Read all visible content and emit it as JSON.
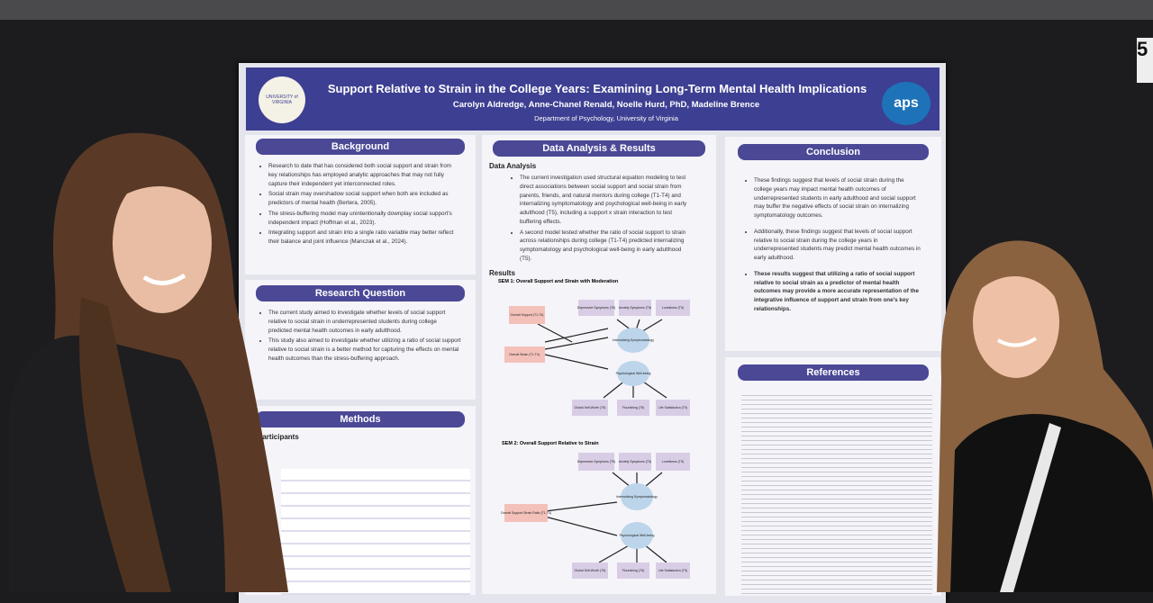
{
  "poster": {
    "university": "UNIVERSITY of VIRGINIA",
    "title": "Support Relative to Strain in the College Years: Examining Long-Term Mental Health Implications",
    "authors": "Carolyn Aldredge, Anne-Chanel Renald, Noelle Hurd, PhD, Madeline Brence",
    "department": "Department of Psychology, University of Virginia",
    "logo": "aps",
    "booth_number": "5",
    "background": {
      "heading": "Background",
      "bullets": [
        "Research to date that has considered both social support and strain from key relationships has employed analytic approaches that may not fully capture their independent yet interconnected roles.",
        "Social strain may overshadow social support when both are included as predictors of mental health (Bertera, 2005).",
        "The stress-buffering model may unintentionally downplay social support's independent impact (Hoffman et al., 2023).",
        "Integrating support and strain into a single ratio variable may better reflect their balance and joint influence (Manczak et al., 2024)."
      ]
    },
    "research_question": {
      "heading": "Research Question",
      "bullets": [
        "The current study aimed to investigate whether levels of social support relative to social strain in underrepresented students during college predicted mental health outcomes in early adulthood.",
        "This study also aimed to investigate whether utilizing a ratio of social support relative to social strain is a better method for capturing the effects on mental health outcomes than the stress-buffering approach."
      ]
    },
    "methods": {
      "heading": "Methods",
      "subheading": "Participants"
    },
    "data_analysis": {
      "heading": "Data Analysis & Results",
      "subheading": "Data Analysis",
      "bullets": [
        "The current investigation used structural equation modeling to test direct associations between social support and social strain from parents, friends, and natural mentors during college (T1-T4) and internalizing symptomatology and psychological well-being in early adulthood (T5), including a support x strain interaction to test buffering effects.",
        "A second model tested whether the ratio of social support to strain across relationships during college (T1-T4) predicted internalizing symptomatology and psychological well-being in early adulthood (T5)."
      ],
      "results_heading": "Results",
      "sem1": "SEM 1: Overall Support and Strain with Moderation",
      "sem2": "SEM 2: Overall Support Relative to Strain",
      "outcomes": [
        "Depressive Symptoms (T5)",
        "Anxiety Symptoms (T5)",
        "Loneliness (T5)",
        "Global Self-Worth (T5)",
        "Flourishing (T5)",
        "Life Satisfaction (T5)"
      ],
      "latents": [
        "Internalizing Symptomatology",
        "Psychological Well-being"
      ],
      "predictors_sem1": [
        "Overall Support (T1-T4)",
        "Overall Strain (T1-T4)"
      ],
      "predictor_sem2": "Overall Support Strain Ratio (T1-T4)"
    },
    "conclusion": {
      "heading": "Conclusion",
      "bullets": [
        "These findings suggest that levels of social strain during the college years may impact mental health outcomes of underrepresented students in early adulthood and social support may buffer the negative effects of social strain on internalizing symptomatology outcomes.",
        "Additionally, these findings suggest that levels of social support relative to social strain during the college years in underrepresented students may predict mental health outcomes in early adulthood.",
        "These results suggest that utilizing a ratio of social support relative to social strain as a predictor of mental health outcomes may provide a more accurate representation of the integrative influence of support and strain from one's key relationships."
      ]
    },
    "references": {
      "heading": "References"
    }
  }
}
